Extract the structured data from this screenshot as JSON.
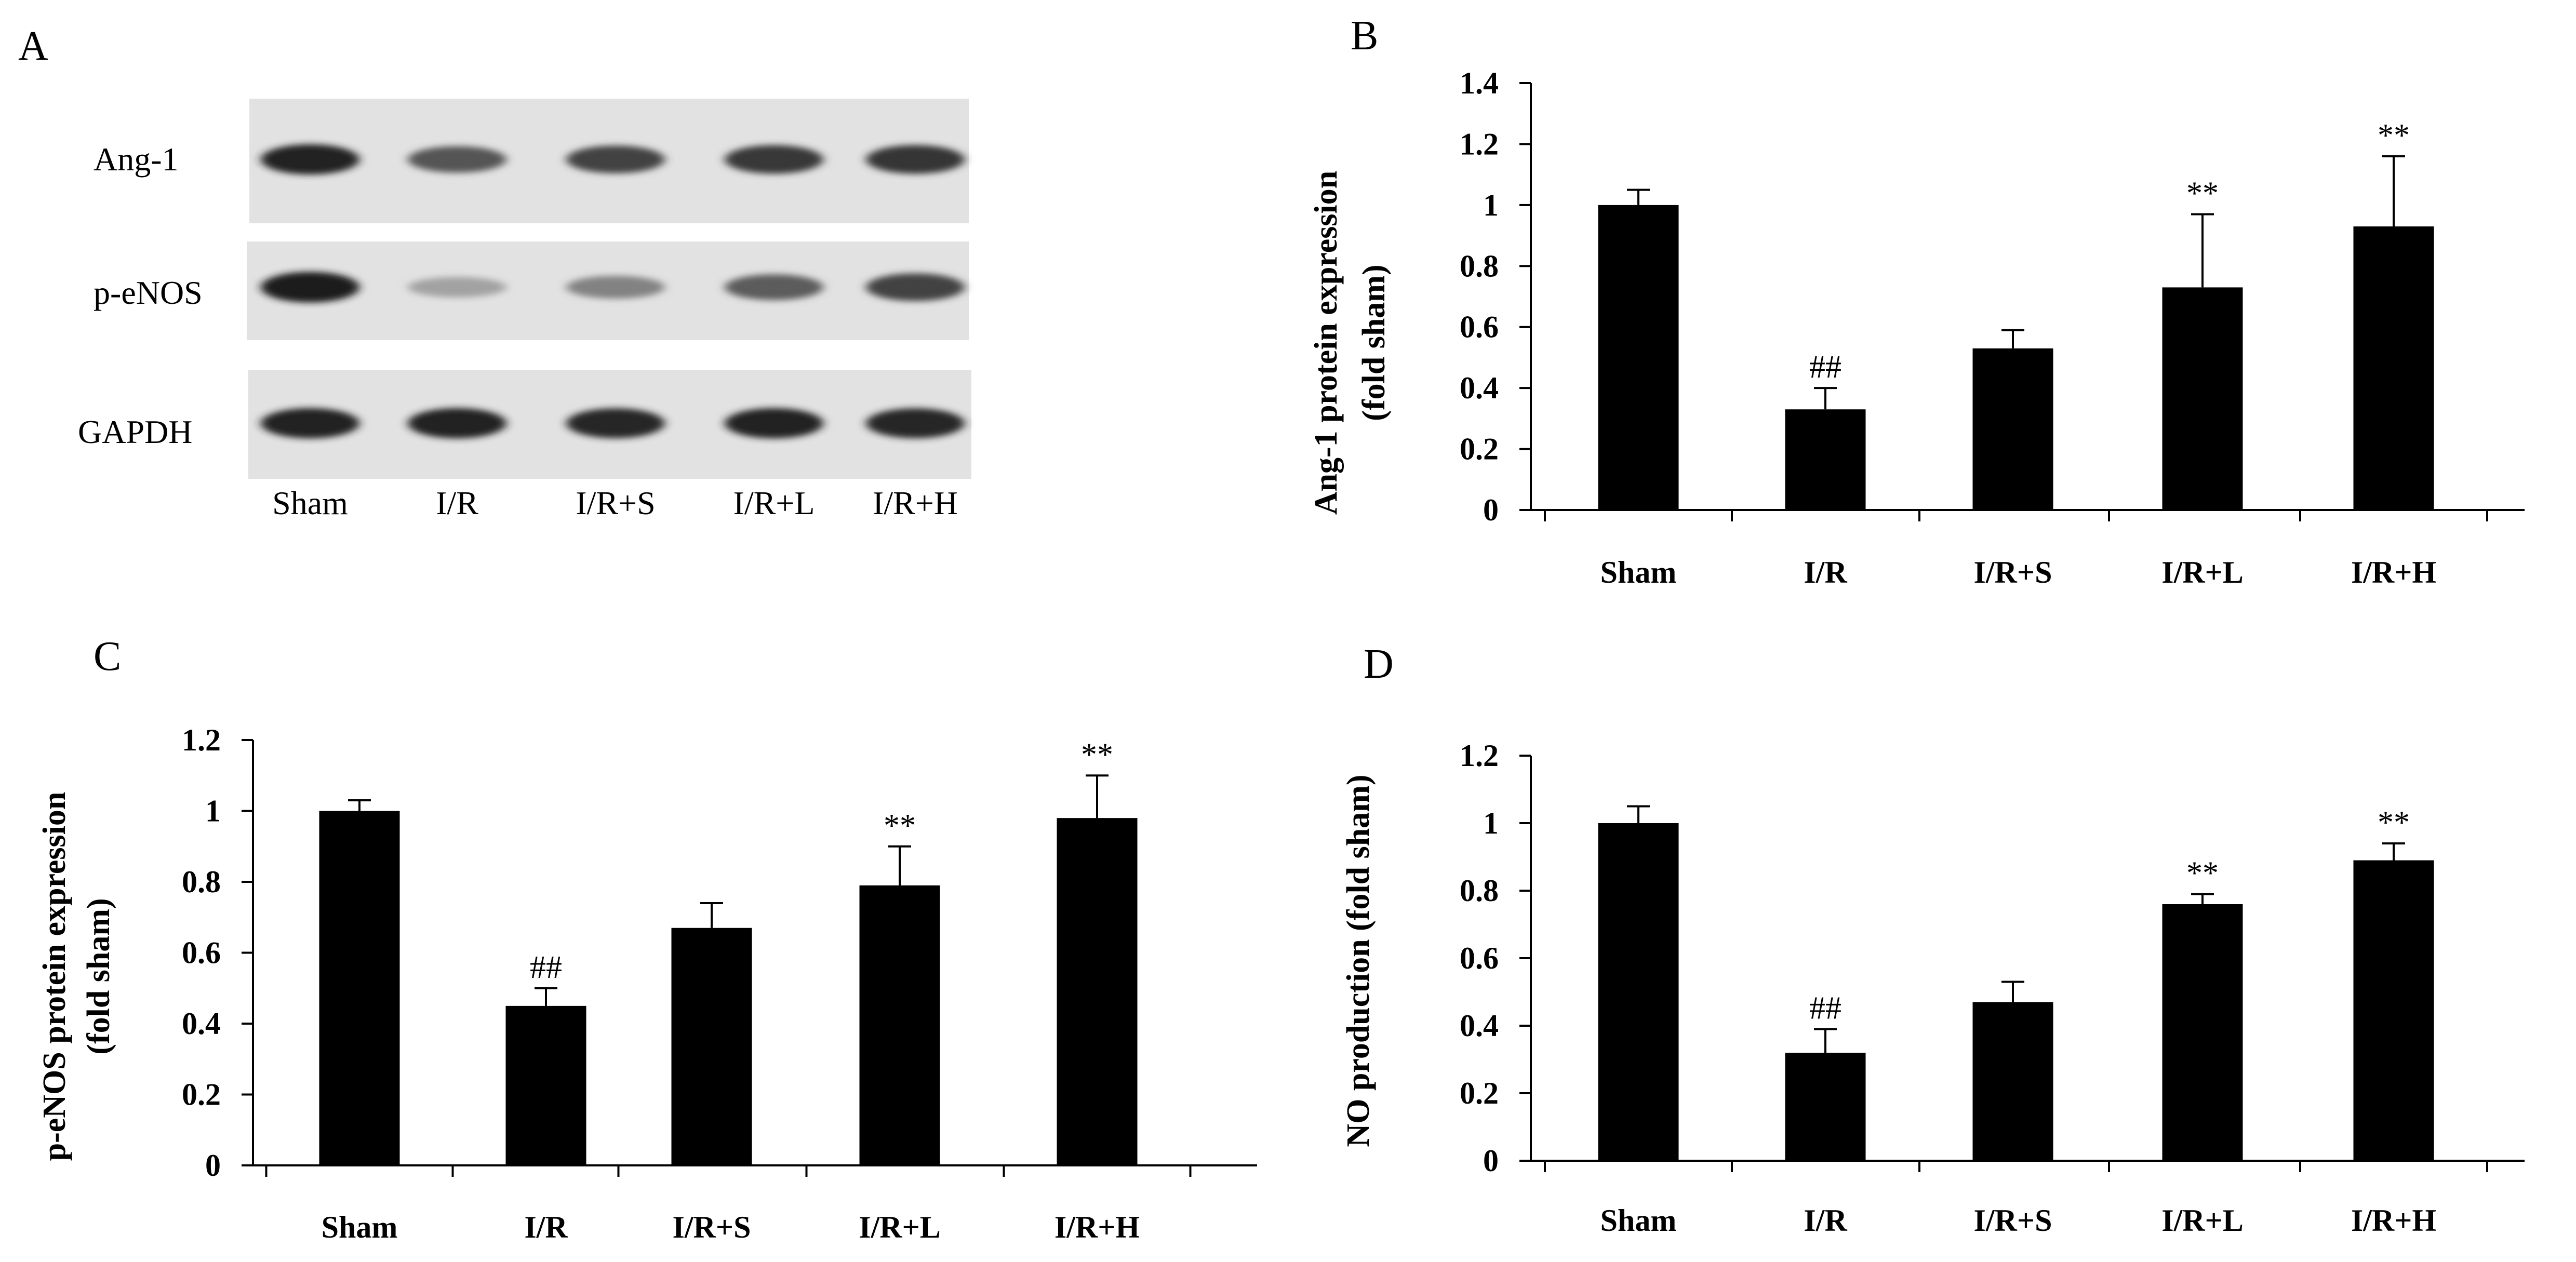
{
  "figure": {
    "panel_letters": [
      "A",
      "B",
      "C",
      "D"
    ]
  },
  "blot": {
    "rows": [
      "Ang-1",
      "p-eNOS",
      "GAPDH"
    ],
    "lanes": [
      "Sham",
      "I/R",
      "I/R+S",
      "I/R+L",
      "I/R+H"
    ],
    "band_intensity": [
      [
        0.95,
        0.72,
        0.8,
        0.85,
        0.86
      ],
      [
        0.98,
        0.35,
        0.5,
        0.68,
        0.8
      ],
      [
        0.95,
        0.95,
        0.93,
        0.95,
        0.93
      ]
    ]
  },
  "chart_data": [
    {
      "panel": "B",
      "type": "bar",
      "categories": [
        "Sham",
        "I/R",
        "I/R+S",
        "I/R+L",
        "I/R+H"
      ],
      "values": [
        1.0,
        0.33,
        0.53,
        0.73,
        0.93
      ],
      "errors": [
        0.05,
        0.07,
        0.06,
        0.24,
        0.23
      ],
      "annotations": [
        "",
        "##",
        "",
        "**",
        "**"
      ],
      "ylabel_lines": [
        "Ang-1 protein expression",
        "(fold sham)"
      ],
      "ylim": [
        0,
        1.4
      ],
      "yticks": [
        0,
        0.2,
        0.4,
        0.6,
        0.8,
        1,
        1.2,
        1.4
      ],
      "ytick_labels": [
        "0",
        "0.2",
        "0.4",
        "0.6",
        "0.8",
        "1",
        "1.2",
        "1.4"
      ],
      "bar_color": "#000000",
      "grid": false
    },
    {
      "panel": "C",
      "type": "bar",
      "categories": [
        "Sham",
        "I/R",
        "I/R+S",
        "I/R+L",
        "I/R+H"
      ],
      "values": [
        1.0,
        0.45,
        0.67,
        0.79,
        0.98
      ],
      "errors": [
        0.03,
        0.05,
        0.07,
        0.11,
        0.12
      ],
      "annotations": [
        "",
        "##",
        "",
        "**",
        "**"
      ],
      "ylabel_lines": [
        "p-eNOS protein expression",
        "(fold sham)"
      ],
      "ylim": [
        0,
        1.2
      ],
      "yticks": [
        0,
        0.2,
        0.4,
        0.6,
        0.8,
        1,
        1.2
      ],
      "ytick_labels": [
        "0",
        "0.2",
        "0.4",
        "0.6",
        "0.8",
        "1",
        "1.2"
      ],
      "bar_color": "#000000",
      "grid": false
    },
    {
      "panel": "D",
      "type": "bar",
      "categories": [
        "Sham",
        "I/R",
        "I/R+S",
        "I/R+L",
        "I/R+H"
      ],
      "values": [
        1.0,
        0.32,
        0.47,
        0.76,
        0.89
      ],
      "errors": [
        0.05,
        0.07,
        0.06,
        0.03,
        0.05
      ],
      "annotations": [
        "",
        "##",
        "",
        "**",
        "**"
      ],
      "ylabel_lines": [
        "NO production (fold sham)"
      ],
      "ylim": [
        0,
        1.2
      ],
      "yticks": [
        0,
        0.2,
        0.4,
        0.6,
        0.8,
        1,
        1.2
      ],
      "ytick_labels": [
        "0",
        "0.2",
        "0.4",
        "0.6",
        "0.8",
        "1",
        "1.2"
      ],
      "bar_color": "#000000",
      "grid": false
    }
  ]
}
